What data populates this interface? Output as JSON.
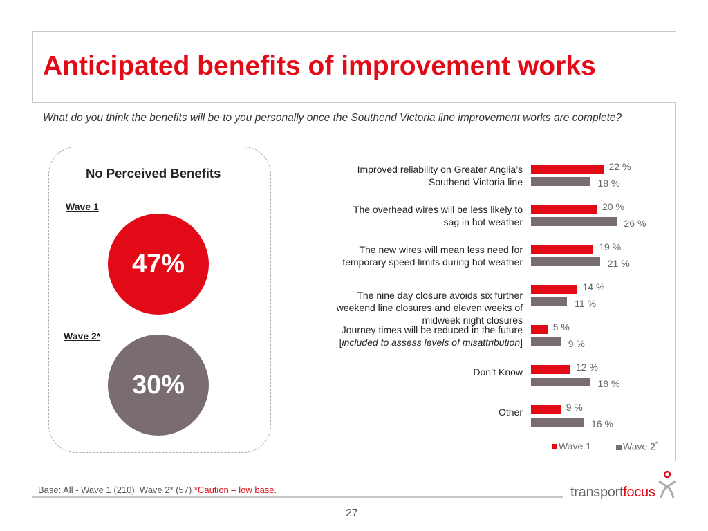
{
  "title": "Anticipated benefits of improvement works",
  "question": "What do you think the benefits will be to you personally once the Southend Victoria line improvement works are complete?",
  "no_benefits": {
    "heading": "No Perceived Benefits",
    "wave1_label": "Wave 1",
    "wave1_value": "47%",
    "wave2_label": "Wave 2*",
    "wave2_value": "30%"
  },
  "chart_data": {
    "type": "bar",
    "orientation": "horizontal",
    "categories": [
      [
        "Improved reliability on Greater Anglia’s",
        "Southend Victoria line"
      ],
      [
        "The overhead wires will be less likely to",
        "sag in hot weather"
      ],
      [
        "The new wires will mean less need for",
        "temporary speed limits during hot weather"
      ],
      [
        "The nine day closure avoids six further",
        "weekend line closures and eleven weeks of",
        "midweek night closures"
      ],
      [
        "Journey times will be reduced in the future",
        "[included to assess levels of misattribution]"
      ],
      [
        "Don’t Know"
      ],
      [
        "Other"
      ]
    ],
    "series": [
      {
        "name": "Wave 1",
        "color": "#e30a17",
        "values": [
          22,
          20,
          19,
          14,
          5,
          12,
          9
        ]
      },
      {
        "name": "Wave 2*",
        "color": "#7a6d72",
        "values": [
          18,
          26,
          21,
          11,
          9,
          18,
          16
        ]
      }
    ],
    "value_suffix": " %",
    "legend": "bottom-right"
  },
  "legend": {
    "wave1": "Wave 1",
    "wave2": "Wave 2",
    "wave2_mark": "*"
  },
  "base": {
    "text": "Base: All - Wave 1 (210), Wave 2* (57) ",
    "caution": "*Caution – low base."
  },
  "logo": {
    "part1": "transport",
    "part2": "focus"
  },
  "page_number": "27"
}
